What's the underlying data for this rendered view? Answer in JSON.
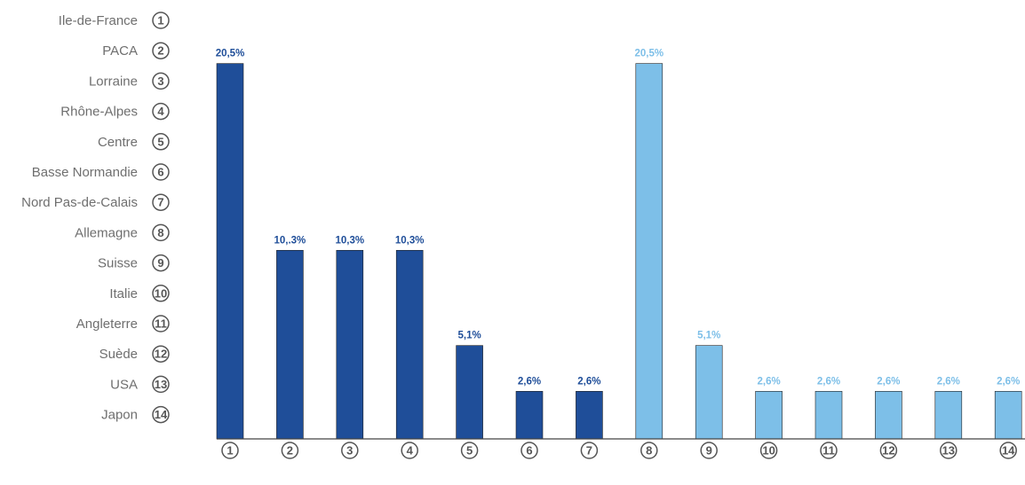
{
  "chart_data": {
    "type": "bar",
    "categories": [
      "1",
      "2",
      "3",
      "4",
      "5",
      "6",
      "7",
      "8",
      "9",
      "10",
      "11",
      "12",
      "13",
      "14"
    ],
    "category_names": [
      "Ile-de-France",
      "PACA",
      "Lorraine",
      "Rhône-Alpes",
      "Centre",
      "Basse Normandie",
      "Nord Pas-de-Calais",
      "Allemagne",
      "Suisse",
      "Italie",
      "Angleterre",
      "Suède",
      "USA",
      "Japon"
    ],
    "values": [
      20.5,
      10.3,
      10.3,
      10.3,
      5.1,
      2.6,
      2.6,
      20.5,
      5.1,
      2.6,
      2.6,
      2.6,
      2.6,
      2.6
    ],
    "value_labels": [
      "20,5%",
      "10,.3%",
      "10,3%",
      "10,3%",
      "5,1%",
      "2,6%",
      "2,6%",
      "20,5%",
      "5,1%",
      "2,6%",
      "2,6%",
      "2,6%",
      "2,6%",
      "2,6%"
    ],
    "groups": [
      {
        "range": [
          1,
          7
        ],
        "color": "#1f4e99"
      },
      {
        "range": [
          8,
          14
        ],
        "color": "#7dbfe8"
      }
    ],
    "ylim": [
      0,
      23
    ],
    "grid": false,
    "legend": "left"
  }
}
